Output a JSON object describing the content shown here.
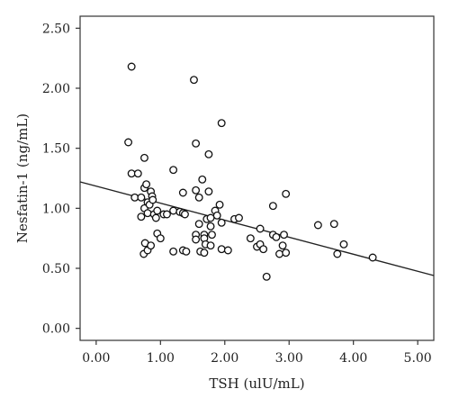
{
  "chart_data": {
    "type": "scatter",
    "title": "",
    "xlabel": "TSH (ulU/mL)",
    "ylabel": "Nesfatin-1 (ng/mL)",
    "xlim": [
      -0.25,
      5.25
    ],
    "ylim": [
      -0.1,
      2.6
    ],
    "x_ticks": [
      0,
      1,
      2,
      3,
      4,
      5
    ],
    "x_tick_labels": [
      "0.00",
      "1.00",
      "2.00",
      "3.00",
      "4.00",
      "5.00"
    ],
    "y_ticks": [
      0,
      0.5,
      1,
      1.5,
      2,
      2.5
    ],
    "y_tick_labels": [
      "0.00",
      "0.50",
      "1.00",
      "1.50",
      "2.00",
      "2.50"
    ],
    "grid": false,
    "fit_line": {
      "x": [
        -0.25,
        5.25
      ],
      "y": [
        1.22,
        0.44
      ]
    },
    "series": [
      {
        "points": [
          [
            0.5,
            1.55
          ],
          [
            0.55,
            2.18
          ],
          [
            0.55,
            1.29
          ],
          [
            0.6,
            1.09
          ],
          [
            0.65,
            1.29
          ],
          [
            0.7,
            1.09
          ],
          [
            0.7,
            0.93
          ],
          [
            0.75,
            1.42
          ],
          [
            0.75,
            1.17
          ],
          [
            0.78,
            1.2
          ],
          [
            0.75,
            1.0
          ],
          [
            0.8,
            1.05
          ],
          [
            0.83,
            1.03
          ],
          [
            0.85,
            1.14
          ],
          [
            0.87,
            1.1
          ],
          [
            0.88,
            1.07
          ],
          [
            0.8,
            0.96
          ],
          [
            0.9,
            0.95
          ],
          [
            0.93,
            0.92
          ],
          [
            0.95,
            0.98
          ],
          [
            0.76,
            0.71
          ],
          [
            0.74,
            0.62
          ],
          [
            0.8,
            0.65
          ],
          [
            0.85,
            0.69
          ],
          [
            0.95,
            0.79
          ],
          [
            1.0,
            0.75
          ],
          [
            1.05,
            0.95
          ],
          [
            1.1,
            0.95
          ],
          [
            1.2,
            1.32
          ],
          [
            1.2,
            0.98
          ],
          [
            1.2,
            0.64
          ],
          [
            1.3,
            0.97
          ],
          [
            1.35,
            1.13
          ],
          [
            1.35,
            0.96
          ],
          [
            1.38,
            0.95
          ],
          [
            1.35,
            0.65
          ],
          [
            1.4,
            0.64
          ],
          [
            1.52,
            2.07
          ],
          [
            1.55,
            1.54
          ],
          [
            1.55,
            1.15
          ],
          [
            1.6,
            1.09
          ],
          [
            1.55,
            0.78
          ],
          [
            1.55,
            0.74
          ],
          [
            1.6,
            0.87
          ],
          [
            1.62,
            0.64
          ],
          [
            1.65,
            1.24
          ],
          [
            1.68,
            0.78
          ],
          [
            1.68,
            0.75
          ],
          [
            1.68,
            0.63
          ],
          [
            1.7,
            0.7
          ],
          [
            1.75,
            1.45
          ],
          [
            1.75,
            1.14
          ],
          [
            1.72,
            0.91
          ],
          [
            1.78,
            0.92
          ],
          [
            1.78,
            0.85
          ],
          [
            1.8,
            0.78
          ],
          [
            1.78,
            0.69
          ],
          [
            1.85,
            0.98
          ],
          [
            1.88,
            0.94
          ],
          [
            1.95,
            1.71
          ],
          [
            1.92,
            1.03
          ],
          [
            1.95,
            0.88
          ],
          [
            1.95,
            0.66
          ],
          [
            2.05,
            0.65
          ],
          [
            2.15,
            0.91
          ],
          [
            2.22,
            0.92
          ],
          [
            2.4,
            0.75
          ],
          [
            2.5,
            0.68
          ],
          [
            2.55,
            0.83
          ],
          [
            2.55,
            0.7
          ],
          [
            2.6,
            0.66
          ],
          [
            2.65,
            0.43
          ],
          [
            2.75,
            1.02
          ],
          [
            2.75,
            0.78
          ],
          [
            2.8,
            0.76
          ],
          [
            2.85,
            0.62
          ],
          [
            2.9,
            0.69
          ],
          [
            2.92,
            0.78
          ],
          [
            2.95,
            0.63
          ],
          [
            2.95,
            1.12
          ],
          [
            3.45,
            0.86
          ],
          [
            3.7,
            0.87
          ],
          [
            3.75,
            0.62
          ],
          [
            3.85,
            0.7
          ],
          [
            4.3,
            0.59
          ]
        ]
      }
    ]
  }
}
